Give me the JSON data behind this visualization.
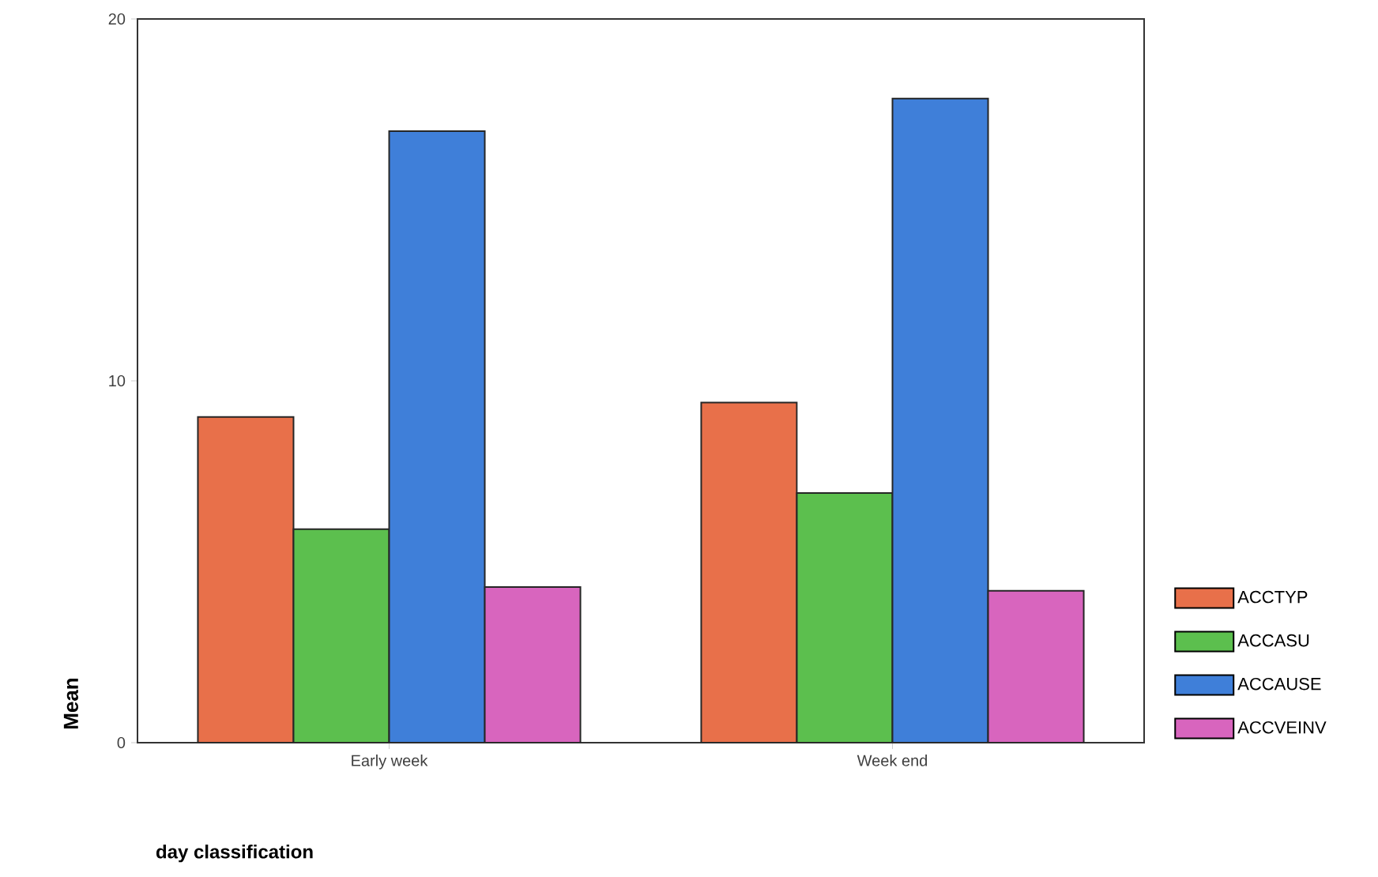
{
  "chart_data": {
    "type": "bar",
    "xlabel": "day classification",
    "ylabel": "Mean",
    "categories": [
      "Early week",
      "Week end"
    ],
    "series": [
      {
        "name": "ACCTYP",
        "color": "#e8704a",
        "values": [
          9.0,
          9.4
        ]
      },
      {
        "name": "ACCASU",
        "color": "#5cbf4e",
        "values": [
          5.9,
          6.9
        ]
      },
      {
        "name": "ACCAUSE",
        "color": "#3f7fd9",
        "values": [
          16.9,
          17.8
        ]
      },
      {
        "name": "ACCVEINV",
        "color": "#d865be",
        "values": [
          4.3,
          4.2
        ]
      }
    ],
    "ylim": [
      0,
      20
    ],
    "yticks": [
      0,
      10,
      20
    ],
    "grid": false,
    "legend": "right"
  }
}
